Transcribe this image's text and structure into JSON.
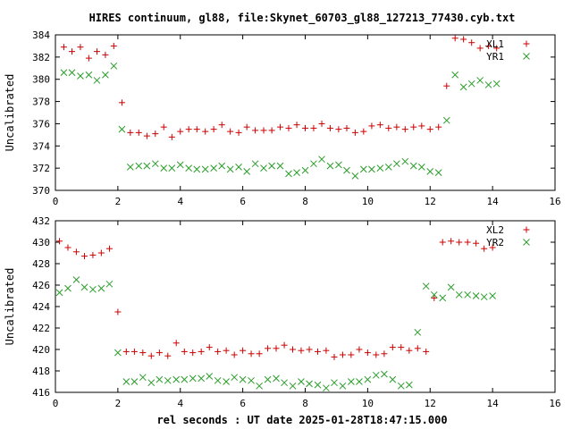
{
  "chart_data": {
    "title": "HIRES continuum, gl88, file:Skynet_60703_gl88_127213_77430.cyb.txt",
    "xlabel": "rel seconds : UT date 2025-01-28T18:47:15.000",
    "colors": {
      "plus": "#cc0000",
      "cross": "#2a9d2a"
    },
    "panels": [
      {
        "type": "scatter",
        "ylabel": "Uncalibrated",
        "xlim": [
          0,
          16
        ],
        "ylim": [
          370,
          384
        ],
        "xticks": [
          0,
          2,
          4,
          6,
          8,
          10,
          12,
          14,
          16
        ],
        "yticks": [
          370,
          372,
          374,
          376,
          378,
          380,
          382,
          384
        ],
        "legend": "top-right",
        "series": [
          {
            "name": "XL1",
            "marker": "plus",
            "x": [
              0.27,
              0.53,
              0.8,
              1.07,
              1.33,
              1.6,
              1.87,
              2.13,
              2.4,
              2.67,
              2.93,
              3.2,
              3.47,
              3.73,
              4.0,
              4.27,
              4.53,
              4.8,
              5.07,
              5.33,
              5.6,
              5.87,
              6.13,
              6.4,
              6.67,
              6.93,
              7.2,
              7.47,
              7.73,
              8.0,
              8.27,
              8.53,
              8.8,
              9.07,
              9.33,
              9.6,
              9.87,
              10.13,
              10.4,
              10.67,
              10.93,
              11.2,
              11.47,
              11.73,
              12.0,
              12.27,
              12.53,
              12.8,
              13.07,
              13.33,
              13.6,
              13.87,
              14.13
            ],
            "y": [
              382.9,
              382.5,
              382.9,
              381.9,
              382.5,
              382.2,
              383.0,
              377.9,
              375.2,
              375.2,
              374.9,
              375.1,
              375.7,
              374.8,
              375.3,
              375.5,
              375.5,
              375.3,
              375.5,
              375.9,
              375.3,
              375.2,
              375.7,
              375.4,
              375.4,
              375.4,
              375.7,
              375.6,
              375.9,
              375.6,
              375.6,
              376.0,
              375.6,
              375.5,
              375.6,
              375.2,
              375.3,
              375.8,
              375.9,
              375.6,
              375.7,
              375.5,
              375.7,
              375.8,
              375.5,
              375.7,
              379.4,
              383.7,
              383.6,
              383.3,
              382.8,
              383.0,
              382.8
            ]
          },
          {
            "name": "YR1",
            "marker": "cross",
            "x": [
              0.27,
              0.53,
              0.8,
              1.07,
              1.33,
              1.6,
              1.87,
              2.13,
              2.4,
              2.67,
              2.93,
              3.2,
              3.47,
              3.73,
              4.0,
              4.27,
              4.53,
              4.8,
              5.07,
              5.33,
              5.6,
              5.87,
              6.13,
              6.4,
              6.67,
              6.93,
              7.2,
              7.47,
              7.73,
              8.0,
              8.27,
              8.53,
              8.8,
              9.07,
              9.33,
              9.6,
              9.87,
              10.13,
              10.4,
              10.67,
              10.93,
              11.2,
              11.47,
              11.73,
              12.0,
              12.27,
              12.53,
              12.8,
              13.07,
              13.33,
              13.6,
              13.87,
              14.13
            ],
            "y": [
              380.6,
              380.6,
              380.3,
              380.4,
              379.9,
              380.4,
              381.2,
              375.5,
              372.1,
              372.2,
              372.2,
              372.4,
              372.0,
              372.0,
              372.3,
              372.0,
              371.9,
              371.9,
              372.0,
              372.2,
              371.9,
              372.1,
              371.7,
              372.4,
              372.0,
              372.2,
              372.2,
              371.5,
              371.6,
              371.8,
              372.4,
              372.8,
              372.2,
              372.3,
              371.8,
              371.3,
              371.9,
              371.9,
              372.0,
              372.1,
              372.4,
              372.6,
              372.2,
              372.1,
              371.7,
              371.6,
              376.3,
              380.4,
              379.3,
              379.6,
              379.9,
              379.5,
              379.6
            ]
          }
        ]
      },
      {
        "type": "scatter",
        "ylabel": "Uncalibrated",
        "xlim": [
          0,
          16
        ],
        "ylim": [
          416,
          432
        ],
        "xticks": [
          0,
          2,
          4,
          6,
          8,
          10,
          12,
          14,
          16
        ],
        "yticks": [
          416,
          418,
          420,
          422,
          424,
          426,
          428,
          430,
          432
        ],
        "legend": "top-right",
        "series": [
          {
            "name": "XL2",
            "marker": "plus",
            "x": [
              0.13,
              0.4,
              0.67,
              0.93,
              1.2,
              1.47,
              1.73,
              2.0,
              2.27,
              2.53,
              2.8,
              3.07,
              3.33,
              3.6,
              3.87,
              4.13,
              4.4,
              4.67,
              4.93,
              5.2,
              5.47,
              5.73,
              6.0,
              6.27,
              6.53,
              6.8,
              7.07,
              7.33,
              7.6,
              7.87,
              8.13,
              8.4,
              8.67,
              8.93,
              9.2,
              9.47,
              9.73,
              10.0,
              10.27,
              10.53,
              10.8,
              11.07,
              11.33,
              11.6,
              11.87,
              12.13,
              12.4,
              12.67,
              12.93,
              13.2,
              13.47,
              13.73,
              14.0
            ],
            "y": [
              430.1,
              429.5,
              429.1,
              428.7,
              428.8,
              429.0,
              429.4,
              423.5,
              419.8,
              419.8,
              419.7,
              419.4,
              419.7,
              419.4,
              420.6,
              419.8,
              419.7,
              419.8,
              420.2,
              419.8,
              419.9,
              419.5,
              419.9,
              419.6,
              419.6,
              420.1,
              420.1,
              420.4,
              420.0,
              419.9,
              420.0,
              419.8,
              419.9,
              419.3,
              419.5,
              419.5,
              420.0,
              419.7,
              419.5,
              419.6,
              420.2,
              420.2,
              419.9,
              420.1,
              419.8,
              424.8,
              430.0,
              430.1,
              430.0,
              430.0,
              429.9,
              429.4,
              429.5
            ]
          },
          {
            "name": "YR2",
            "marker": "cross",
            "x": [
              0.13,
              0.4,
              0.67,
              0.93,
              1.2,
              1.47,
              1.73,
              2.0,
              2.27,
              2.53,
              2.8,
              3.07,
              3.33,
              3.6,
              3.87,
              4.13,
              4.4,
              4.67,
              4.93,
              5.2,
              5.47,
              5.73,
              6.0,
              6.27,
              6.53,
              6.8,
              7.07,
              7.33,
              7.6,
              7.87,
              8.13,
              8.4,
              8.67,
              8.93,
              9.2,
              9.47,
              9.73,
              10.0,
              10.27,
              10.53,
              10.8,
              11.07,
              11.33,
              11.6,
              11.87,
              12.13,
              12.4,
              12.67,
              12.93,
              13.2,
              13.47,
              13.73,
              14.0
            ],
            "y": [
              425.3,
              425.7,
              426.5,
              425.8,
              425.6,
              425.7,
              426.1,
              419.7,
              417.0,
              417.0,
              417.4,
              416.9,
              417.2,
              417.1,
              417.2,
              417.2,
              417.3,
              417.3,
              417.5,
              417.1,
              417.0,
              417.4,
              417.2,
              417.1,
              416.6,
              417.2,
              417.3,
              416.9,
              416.6,
              417.0,
              416.8,
              416.7,
              416.4,
              416.9,
              416.6,
              417.0,
              417.0,
              417.2,
              417.6,
              417.7,
              417.2,
              416.6,
              416.7,
              421.6,
              425.9,
              425.1,
              424.8,
              425.8,
              425.1,
              425.1,
              425.0,
              424.9,
              425.0
            ]
          }
        ]
      }
    ]
  }
}
